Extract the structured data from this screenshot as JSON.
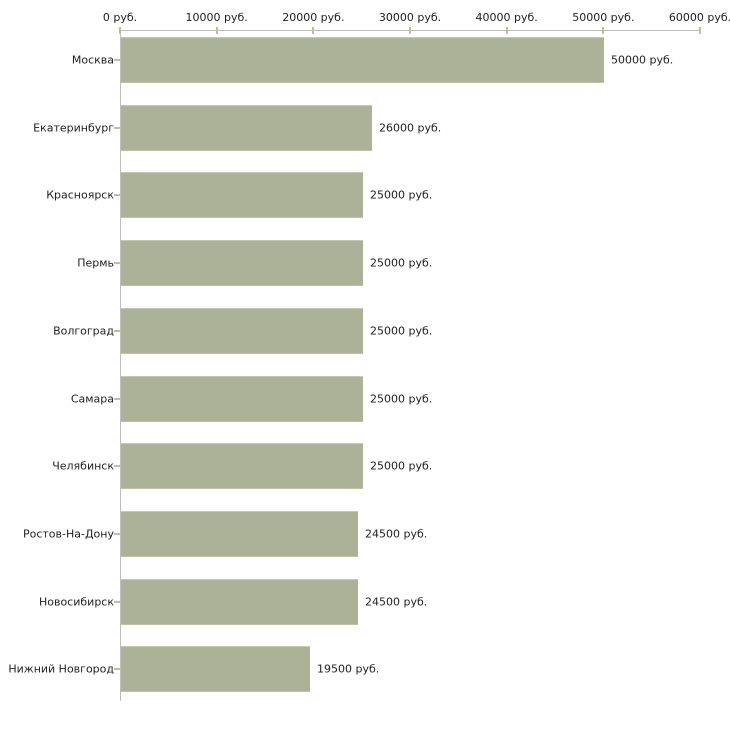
{
  "chart_data": {
    "type": "bar",
    "orientation": "horizontal",
    "title": "",
    "xlabel": "",
    "ylabel": "",
    "unit": "руб.",
    "xlim": [
      0,
      60000
    ],
    "grid": false,
    "legend": "none",
    "categories": [
      "Москва",
      "Екатеринбург",
      "Красноярск",
      "Пермь",
      "Волгоград",
      "Самара",
      "Челябинск",
      "Ростов-На-Дону",
      "Новосибирск",
      "Нижний Новгород"
    ],
    "values": [
      50000,
      26000,
      25000,
      25000,
      25000,
      25000,
      25000,
      24500,
      24500,
      19500
    ],
    "value_labels": [
      "50000 руб.",
      "26000 руб.",
      "25000 руб.",
      "25000 руб.",
      "25000 руб.",
      "25000 руб.",
      "25000 руб.",
      "24500 руб.",
      "24500 руб.",
      "19500 руб."
    ],
    "x_ticks": [
      {
        "value": 0,
        "label": "0 руб."
      },
      {
        "value": 10000,
        "label": "10000 руб."
      },
      {
        "value": 20000,
        "label": "20000 руб."
      },
      {
        "value": 30000,
        "label": "30000 руб."
      },
      {
        "value": 40000,
        "label": "40000 руб."
      },
      {
        "value": 50000,
        "label": "50000 руб."
      },
      {
        "value": 60000,
        "label": "60000 руб."
      }
    ],
    "colors": {
      "bar": "#acb298",
      "bar_top_edge": "#c8cab0",
      "bar_bottom_edge": "#bfc1a6",
      "axis_line": "#bebebe",
      "tick_mark": "#c3bf9c",
      "text": "#222222",
      "background": "#ffffff"
    }
  }
}
